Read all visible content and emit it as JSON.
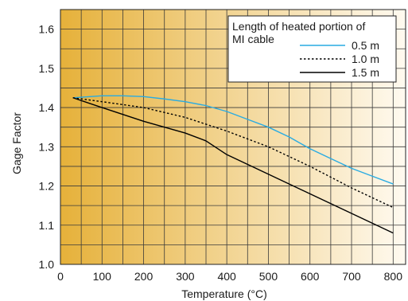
{
  "chart_data": {
    "type": "line",
    "xlabel": "Temperature (°C)",
    "ylabel": "Gage Factor",
    "xlim": [
      0,
      830
    ],
    "ylim": [
      1.0,
      1.65
    ],
    "xticks": [
      "0",
      "100",
      "200",
      "300",
      "400",
      "500",
      "600",
      "700",
      "800"
    ],
    "yticks": [
      "1.0",
      "1.1",
      "1.2",
      "1.3",
      "1.4",
      "1.5",
      "1.6"
    ],
    "grid": true,
    "background": "gradient",
    "legend": {
      "title": "Length of heated portion of MI cable",
      "title_lines": [
        "Length of heated portion of",
        "MI cable"
      ],
      "placement": "top-right"
    },
    "series": [
      {
        "name": "0.5 m",
        "style": "solid",
        "color": "#29abe2",
        "points": [
          [
            30,
            1.425
          ],
          [
            100,
            1.43
          ],
          [
            150,
            1.43
          ],
          [
            200,
            1.428
          ],
          [
            250,
            1.422
          ],
          [
            300,
            1.415
          ],
          [
            350,
            1.405
          ],
          [
            400,
            1.39
          ],
          [
            450,
            1.37
          ],
          [
            500,
            1.35
          ],
          [
            550,
            1.325
          ],
          [
            600,
            1.295
          ],
          [
            650,
            1.27
          ],
          [
            700,
            1.245
          ],
          [
            750,
            1.225
          ],
          [
            800,
            1.205
          ]
        ]
      },
      {
        "name": "1.0 m",
        "style": "dotted",
        "color": "#000000",
        "points": [
          [
            30,
            1.425
          ],
          [
            100,
            1.415
          ],
          [
            200,
            1.4
          ],
          [
            300,
            1.375
          ],
          [
            400,
            1.34
          ],
          [
            500,
            1.3
          ],
          [
            600,
            1.25
          ],
          [
            700,
            1.195
          ],
          [
            800,
            1.145
          ]
        ]
      },
      {
        "name": "1.5 m",
        "style": "solid",
        "color": "#000000",
        "points": [
          [
            30,
            1.425
          ],
          [
            100,
            1.4
          ],
          [
            200,
            1.365
          ],
          [
            300,
            1.335
          ],
          [
            350,
            1.315
          ],
          [
            400,
            1.28
          ],
          [
            500,
            1.23
          ],
          [
            600,
            1.18
          ],
          [
            700,
            1.13
          ],
          [
            800,
            1.08
          ]
        ]
      }
    ],
    "colors": {
      "gradient_left": "#e6b13a",
      "gradient_right": "#fffaf0",
      "grid": "#3a3a3a",
      "legend_bg": "#ffffff"
    }
  }
}
